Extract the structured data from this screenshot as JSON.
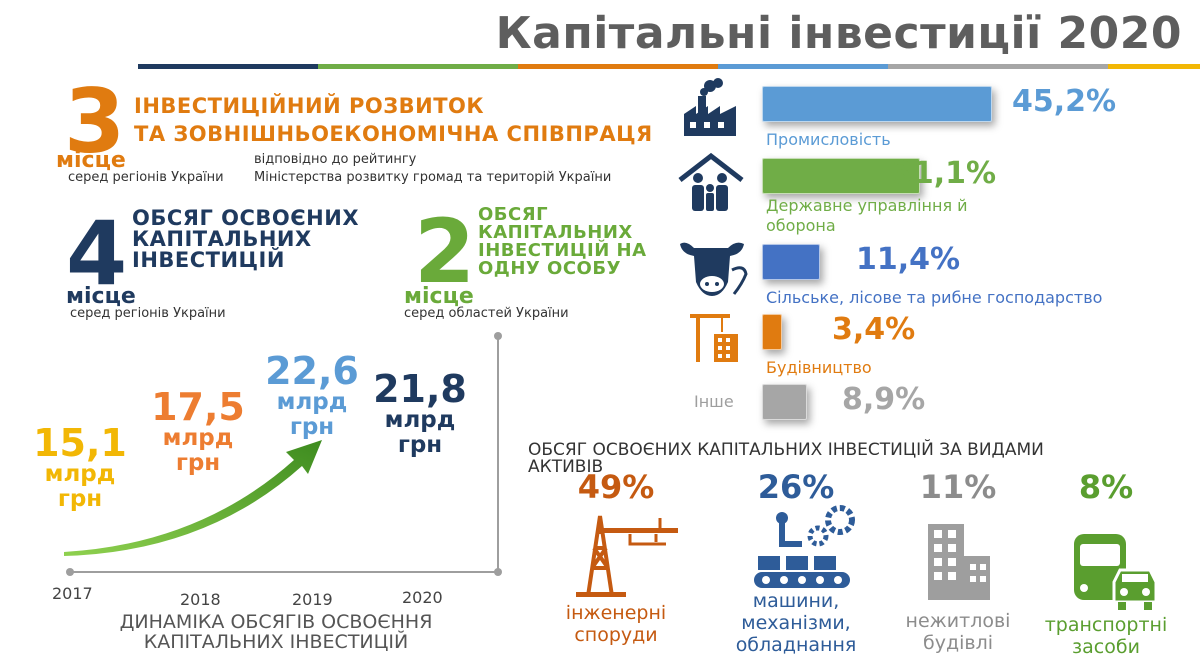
{
  "title": "Капітальні інвестиції 2020",
  "colors": {
    "orange": "#e07b10",
    "navy": "#1f3a5f",
    "green": "#6aaa3a",
    "lightblue": "#5b9bd5",
    "blue": "#4472c4",
    "gray": "#9e9e9e",
    "yellow": "#f2b705"
  },
  "rank1": {
    "number": "3",
    "place": "місце",
    "scope": "серед регіонів України",
    "title_line1": "ІНВЕСТИЦІЙНИЙ  РОЗВИТОК",
    "title_line2": "ТА ЗОВНІШНЬОЕКОНОМІЧНА  СПІВПРАЦЯ",
    "note_line1": "відповідно до рейтингу",
    "note_line2": "Міністерства розвитку громад та територій України"
  },
  "rank2": {
    "number": "4",
    "place": "місце",
    "scope": "серед регіонів України",
    "title_lines": [
      "ОБСЯГ ОСВОЄНИХ",
      "КАПІТАЛЬНИХ",
      "ІНВЕСТИЦІЙ"
    ]
  },
  "rank3": {
    "number": "2",
    "place": "місце",
    "scope": "серед областей України",
    "title_lines": [
      "ОБСЯГ",
      "КАПІТАЛЬНИХ",
      "ІНВЕСТИЦІЙ НА",
      "ОДНУ ОСОБУ"
    ]
  },
  "sectors": [
    {
      "label": "Промисловість",
      "value": "45,2%",
      "share": 45.2,
      "color": "#5b9bd5",
      "icon": "factory-icon"
    },
    {
      "label": "Державне управління  й\nоборона",
      "value": "31,1%",
      "share": 31.1,
      "color": "#70ad47",
      "icon": "family-house-icon"
    },
    {
      "label": "Сільське,  лісове та рибне  господарство",
      "value": "11,4%",
      "share": 11.4,
      "color": "#4472c4",
      "icon": "cow-icon"
    },
    {
      "label": "Будівництво",
      "value": "3,4%",
      "share": 3.4,
      "color": "#e07b10",
      "icon": "crane-icon"
    },
    {
      "label": "Інше",
      "value": "8,9%",
      "share": 8.9,
      "color": "#a6a6a6",
      "icon": ""
    }
  ],
  "dynamics": {
    "caption_line1": "ДИНАМІКА  ОБСЯГІВ  ОСВОЄННЯ",
    "caption_line2": "КАПІТАЛЬНИХ  ІНВЕСТИЦІЙ",
    "points": [
      {
        "year": "2017",
        "value": "15,1",
        "unit1": "млрд",
        "unit2": "грн",
        "color": "#f2b705"
      },
      {
        "year": "2018",
        "value": "17,5",
        "unit1": "млрд",
        "unit2": "грн",
        "color": "#ed7d31"
      },
      {
        "year": "2019",
        "value": "22,6",
        "unit1": "млрд",
        "unit2": "грн",
        "color": "#5b9bd5"
      },
      {
        "year": "2020",
        "value": "21,8",
        "unit1": "млрд",
        "unit2": "грн",
        "color": "#1f3a5f"
      }
    ]
  },
  "assets": {
    "heading": "ОБСЯГ ОСВОЄНИХ  КАПІТАЛЬНИХ  ІНВЕСТИЦІЙ ЗА ВИДАМИ\nАКТИВІВ",
    "items": [
      {
        "value": "49%",
        "label": "інженерні\nспоруди",
        "color": "#c55a11",
        "icon": "tower-icon"
      },
      {
        "value": "26%",
        "label": "машини,\nмеханізми,\nобладнання",
        "color": "#2e5c99",
        "icon": "robot-gears-icon"
      },
      {
        "value": "11%",
        "label": "нежитлові\nбудівлі",
        "color": "#8c8c8c",
        "icon": "building-icon"
      },
      {
        "value": "8%",
        "label": "транспортні\nзасоби",
        "color": "#5a9e2f",
        "icon": "bus-car-icon"
      }
    ]
  }
}
